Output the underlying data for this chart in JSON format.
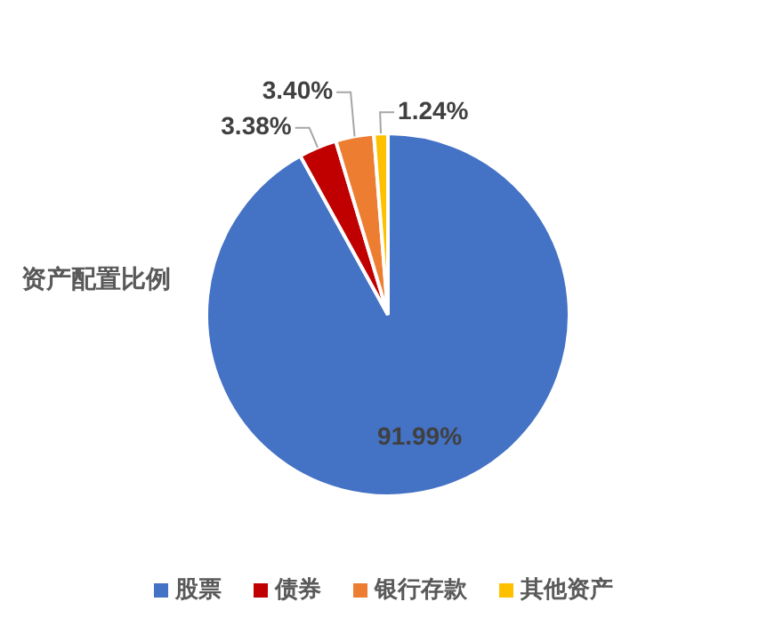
{
  "chart_data": {
    "type": "pie",
    "title": "资产配置比例",
    "categories": [
      "股票",
      "债券",
      "银行存款",
      "其他资产"
    ],
    "values": [
      91.99,
      3.38,
      3.4,
      1.24
    ],
    "colors": [
      "#4472c4",
      "#c00000",
      "#ed7d31",
      "#ffc000"
    ],
    "value_labels": [
      "91.99%",
      "3.38%",
      "3.40%",
      "1.24%"
    ],
    "legend": "bottom"
  }
}
